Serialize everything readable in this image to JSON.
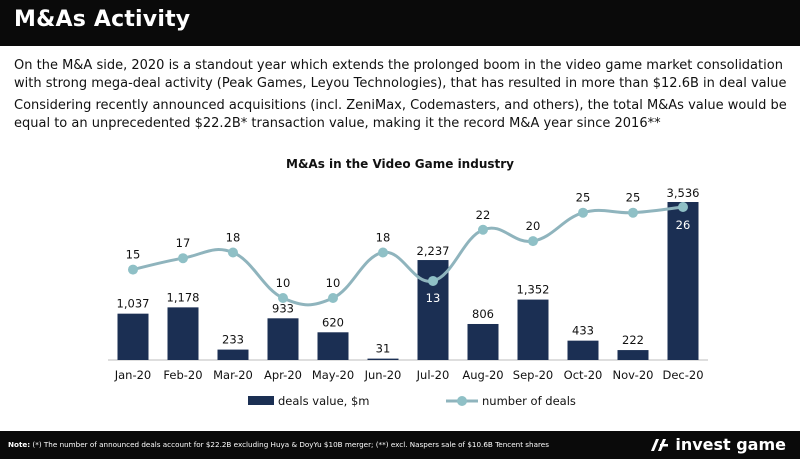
{
  "header": {
    "title": "M&As Activity"
  },
  "paragraphs": [
    "On the M&A side, 2020 is a standout year which extends the prolonged boom in the video game market consolidation with strong mega-deal activity (Peak Games, Leyou Technologies), that has resulted in more than $12.6B in deal value",
    "Considering recently announced acquisitions (incl. ZeniMax, Codemasters, and others), the total M&As value would be equal to an unprecedented $22.2B* transaction value, making it the record M&A year since 2016**"
  ],
  "chart_data": {
    "type": "bar",
    "title": "M&As in the Video Game industry",
    "categories": [
      "Jan-20",
      "Feb-20",
      "Mar-20",
      "Apr-20",
      "May-20",
      "Jun-20",
      "Jul-20",
      "Aug-20",
      "Sep-20",
      "Oct-20",
      "Nov-20",
      "Dec-20"
    ],
    "series": [
      {
        "name": "deals value, $m",
        "type": "bar",
        "values": [
          1037,
          1178,
          233,
          933,
          620,
          31,
          2237,
          806,
          1352,
          433,
          222,
          3536
        ],
        "labels": [
          "1,037",
          "1,178",
          "233",
          "933",
          "620",
          "31",
          "2,237",
          "806",
          "1,352",
          "433",
          "222",
          "3,536"
        ]
      },
      {
        "name": "number of deals",
        "type": "line",
        "values": [
          15,
          17,
          18,
          10,
          10,
          18,
          13,
          22,
          20,
          25,
          25,
          26
        ]
      }
    ],
    "legend": "bottom",
    "colors": {
      "bar": "#1b2f53",
      "line": "#8fb4bd",
      "marker": "#8fc0c6"
    }
  },
  "footer": {
    "note_label": "Note:",
    "note_text": " (*) The number of announced deals account for $22.2B excluding Huya & DoyYu $10B merger; (**) excl. Naspers sale of $10.6B Tencent shares",
    "brand": "invest game"
  }
}
